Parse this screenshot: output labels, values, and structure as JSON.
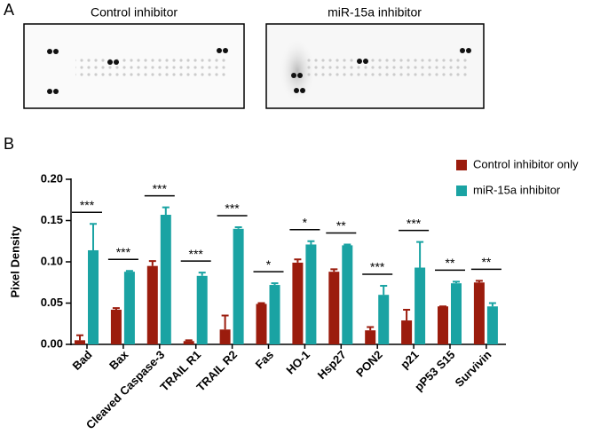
{
  "panel_a": {
    "label": "A",
    "images": [
      "Control inhibitor",
      "miR-15a inhibitor"
    ]
  },
  "chart_data": {
    "type": "bar",
    "panel_label": "B",
    "ylabel": "Pixel Density",
    "categories": [
      "Bad",
      "Bax",
      "Cleaved Caspase-3",
      "TRAIL R1",
      "TRAIL R2",
      "Fas",
      "HO-1",
      "Hsp27",
      "PON2",
      "p21",
      "pP53 S15",
      "Survivin"
    ],
    "series": [
      {
        "name": "Control inhibitor only",
        "color": "#9b1c0d",
        "values": [
          0.005,
          0.042,
          0.095,
          0.004,
          0.018,
          0.049,
          0.099,
          0.088,
          0.017,
          0.029,
          0.046,
          0.075
        ],
        "errors": [
          0.006,
          0.002,
          0.006,
          0.001,
          0.017,
          0.001,
          0.004,
          0.003,
          0.004,
          0.013,
          0,
          0.002
        ]
      },
      {
        "name": "miR-15a inhibitor",
        "color": "#1aa3a3",
        "values": [
          0.114,
          0.088,
          0.157,
          0.083,
          0.14,
          0.072,
          0.121,
          0.12,
          0.06,
          0.093,
          0.074,
          0.046
        ],
        "errors": [
          0.032,
          0.001,
          0.009,
          0.004,
          0.002,
          0.002,
          0.004,
          0.001,
          0.011,
          0.031,
          0.002,
          0.004
        ]
      }
    ],
    "significance": [
      "***",
      "***",
      "***",
      "***",
      "***",
      "*",
      "*",
      "**",
      "***",
      "***",
      "**",
      "**"
    ],
    "ylim": [
      0,
      0.2
    ],
    "yticks": [
      {
        "value": 0,
        "label": "0.00"
      },
      0.05,
      {
        "value": 0.1,
        "label": "0.10"
      },
      0.15,
      {
        "value": 0.2,
        "label": "0.20"
      }
    ],
    "legend": "top-right"
  }
}
